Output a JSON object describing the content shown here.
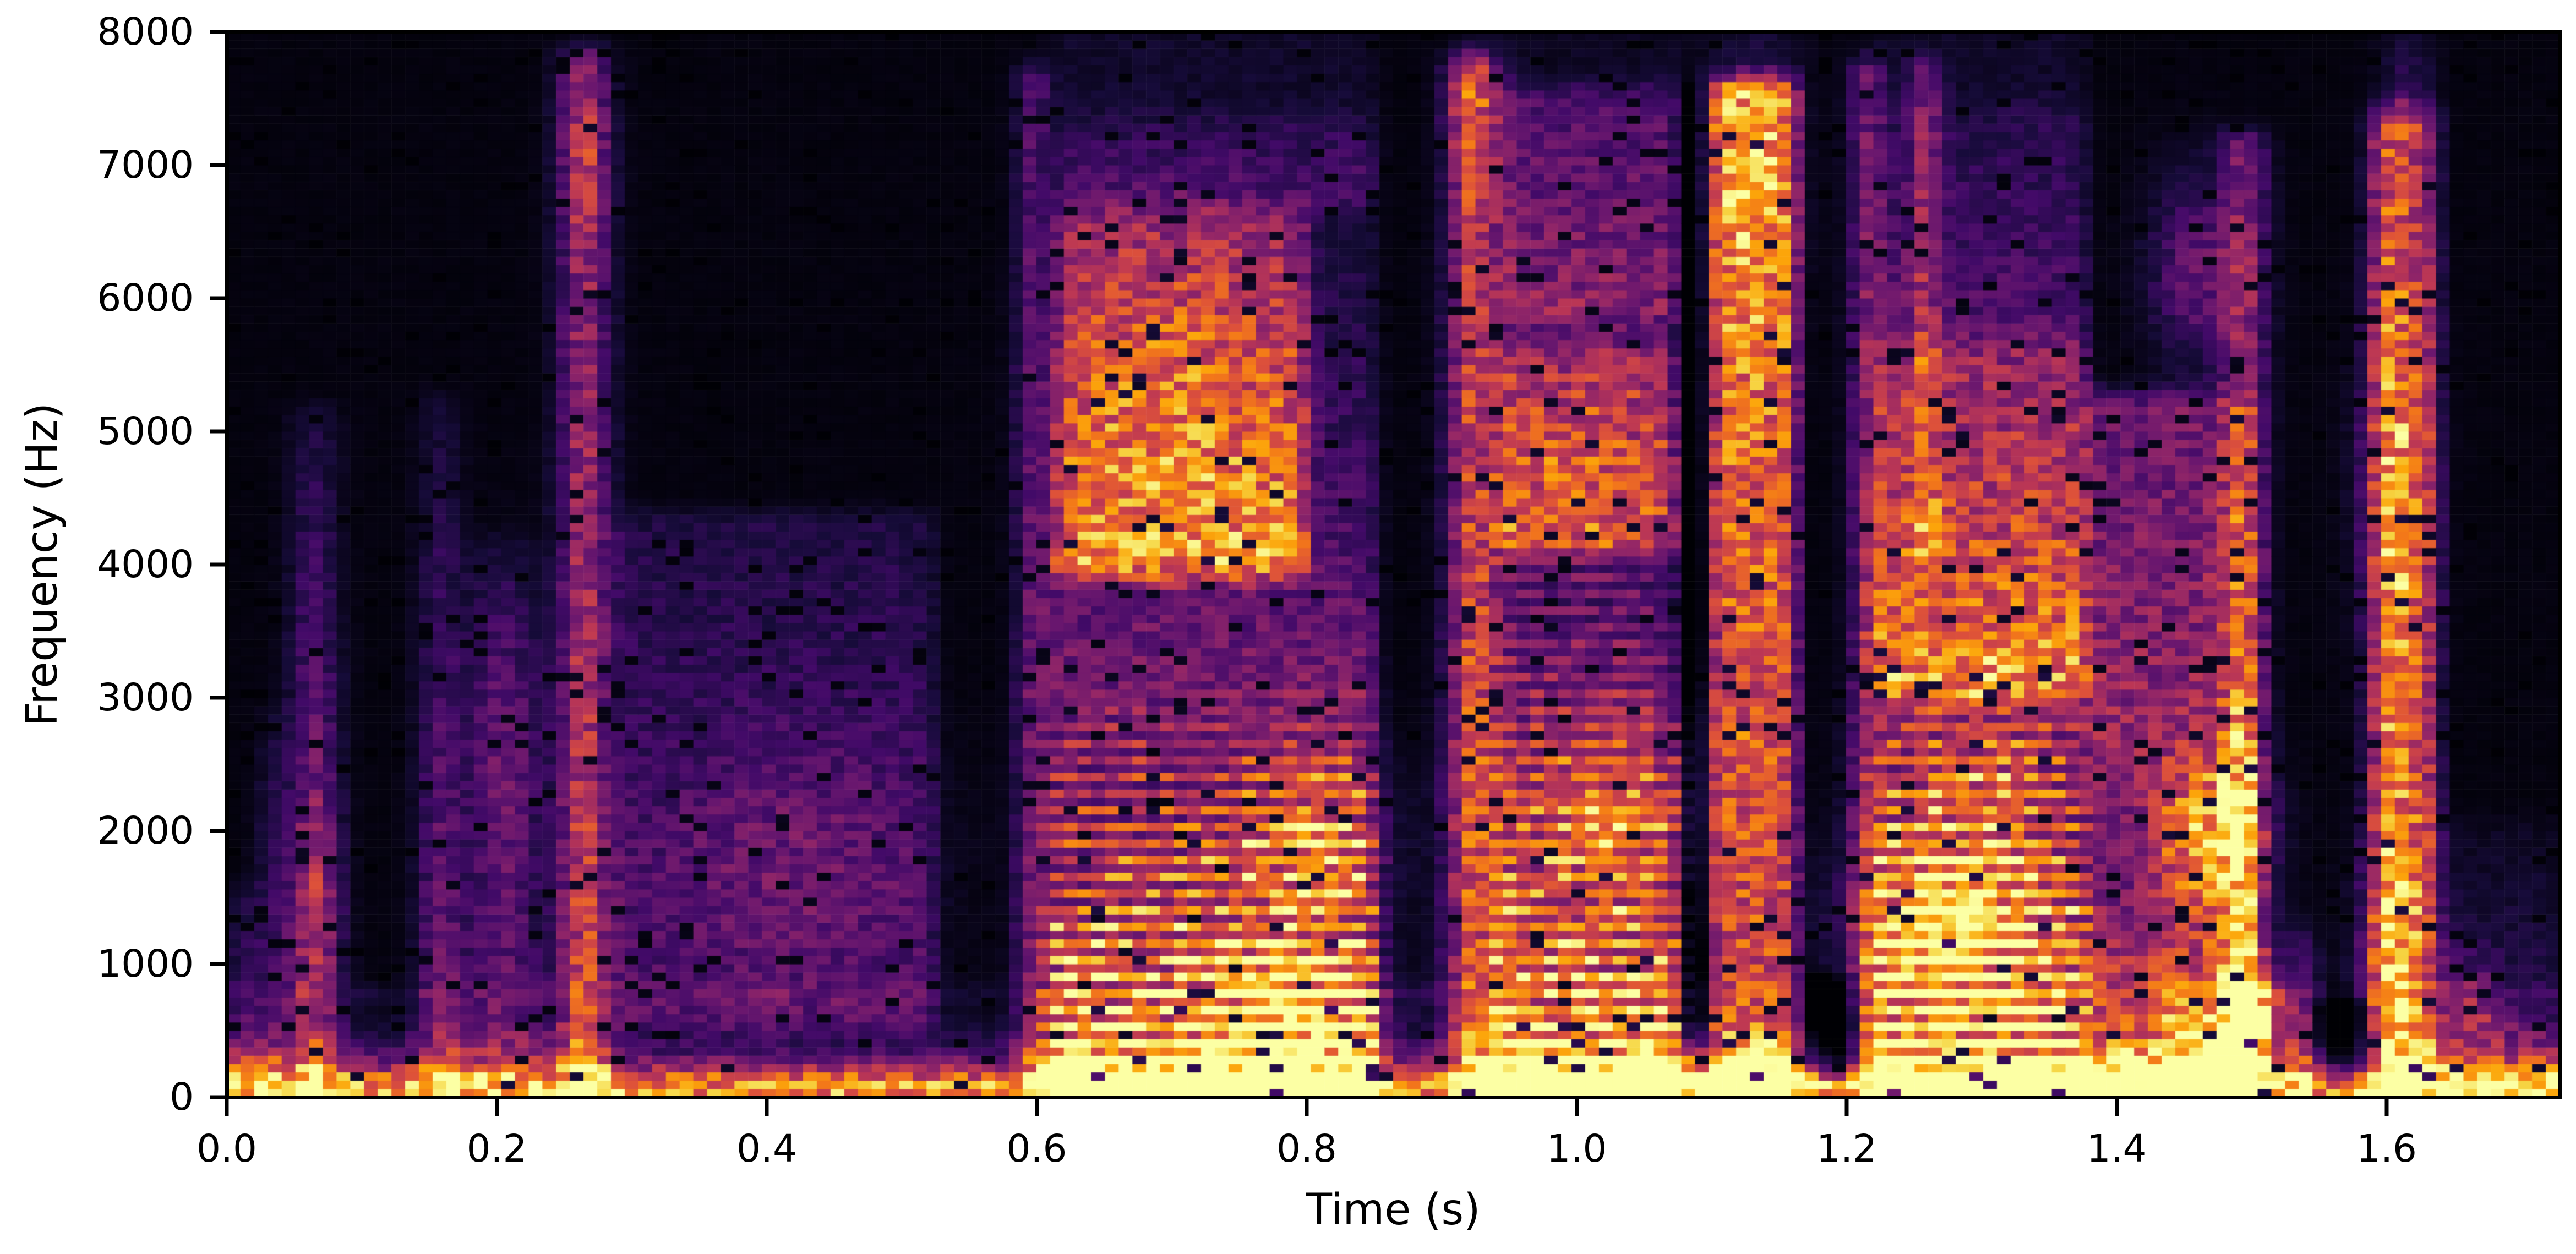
{
  "figure": {
    "xlabel": "Time (s)",
    "ylabel": "Frequency (Hz)",
    "background_color": "#ffffff",
    "spine_color": "#000000"
  },
  "chart_data": {
    "type": "heatmap",
    "subtype": "speech-spectrogram",
    "title": "",
    "xlabel": "Time (s)",
    "ylabel": "Frequency (Hz)",
    "x_range_s": [
      0,
      1.728
    ],
    "y_range_hz": [
      0,
      8000
    ],
    "x_ticks": [
      {
        "value": 0.0,
        "label": "0.0"
      },
      {
        "value": 0.2,
        "label": "0.2"
      },
      {
        "value": 0.4,
        "label": "0.4"
      },
      {
        "value": 0.6,
        "label": "0.6"
      },
      {
        "value": 0.8,
        "label": "0.8"
      },
      {
        "value": 1.0,
        "label": "1.0"
      },
      {
        "value": 1.2,
        "label": "1.2"
      },
      {
        "value": 1.4,
        "label": "1.4"
      },
      {
        "value": 1.6,
        "label": "1.6"
      }
    ],
    "y_ticks": [
      {
        "value": 0,
        "label": "0"
      },
      {
        "value": 1000,
        "label": "1000"
      },
      {
        "value": 2000,
        "label": "2000"
      },
      {
        "value": 3000,
        "label": "3000"
      },
      {
        "value": 4000,
        "label": "4000"
      },
      {
        "value": 5000,
        "label": "5000"
      },
      {
        "value": 6000,
        "label": "6000"
      },
      {
        "value": 7000,
        "label": "7000"
      },
      {
        "value": 8000,
        "label": "8000"
      }
    ],
    "grid": false,
    "legend": "none",
    "colormap": "inferno",
    "colormap_stops": [
      [
        0.0,
        0,
        0,
        4
      ],
      [
        0.1,
        22,
        11,
        57
      ],
      [
        0.2,
        66,
        10,
        104
      ],
      [
        0.3,
        106,
        23,
        110
      ],
      [
        0.4,
        147,
        38,
        103
      ],
      [
        0.5,
        188,
        55,
        84
      ],
      [
        0.6,
        221,
        81,
        58
      ],
      [
        0.7,
        243,
        120,
        25
      ],
      [
        0.8,
        252,
        165,
        10
      ],
      [
        0.9,
        246,
        215,
        70
      ],
      [
        1.0,
        252,
        255,
        164
      ]
    ],
    "render": {
      "seed": 20240917,
      "time_bins": 170,
      "freq_bins": 128,
      "noise_floor": 0.02,
      "noise_mult_min": 0.68,
      "noise_mult_span": 0.64,
      "dropout_prob": 0.05,
      "dropout_factor": 0.12,
      "edge_soft_hz": 150,
      "time_soft_s": 0.012
    },
    "segments": [
      {
        "t0": 0.0,
        "t1": 0.33,
        "label": "sparse transient clicks, mostly below 5 kHz"
      },
      {
        "t0": 0.265,
        "t1": 0.275,
        "label": "tall narrow transient reaching ~7.8 kHz"
      },
      {
        "t0": 0.285,
        "t1": 0.525,
        "label": "faint broadband murmur 0.5-4.4 kHz"
      },
      {
        "t0": 0.6,
        "t1": 0.85,
        "label": "voiced speech burst with strong low harmonics and 4-6.7 kHz energy"
      },
      {
        "t0": 0.92,
        "t1": 1.08,
        "label": "voiced speech burst, harmonics to ~5.6 kHz"
      },
      {
        "t0": 1.1,
        "t1": 1.16,
        "label": "broadband fricative column, top-weighted to ~7.6 kHz"
      },
      {
        "t0": 1.22,
        "t1": 1.5,
        "label": "strongest voiced burst, very bright below 1 kHz"
      },
      {
        "t0": 1.54,
        "t1": 1.59,
        "label": "short silent gap"
      },
      {
        "t0": 1.6,
        "t1": 1.64,
        "label": "broadband release burst to ~7.4 kHz"
      },
      {
        "t0": 1.64,
        "t1": 1.73,
        "label": "low-frequency decaying tail"
      }
    ],
    "events": [
      {
        "type": "band",
        "t0": 0.0,
        "t1": 1.728,
        "f_peak": 120,
        "decay": 170,
        "amp": 0.72
      },
      {
        "type": "hline",
        "t0": 0.0,
        "t1": 1.728,
        "fc": 780,
        "bw": 45,
        "amp": 0.055
      },
      {
        "type": "wash",
        "t0": 0.6,
        "t1": 0.852,
        "f0": 0,
        "f1": 290,
        "a0": 0.3,
        "a1": 0.18
      },
      {
        "type": "wash",
        "t0": 0.92,
        "t1": 1.162,
        "f0": 0,
        "f1": 290,
        "a0": 0.3,
        "a1": 0.18
      },
      {
        "type": "wash",
        "t0": 1.215,
        "t1": 1.505,
        "f0": 0,
        "f1": 290,
        "a0": 0.3,
        "a1": 0.18
      },
      {
        "type": "wash",
        "t0": 1.595,
        "t1": 1.64,
        "f0": 0,
        "f1": 290,
        "a0": 0.26,
        "a1": 0.15
      },
      {
        "type": "click",
        "tc": 0.012,
        "w": 0.012,
        "f0": 0,
        "f1": 1600,
        "a0": 0.22,
        "a1": 0.06
      },
      {
        "type": "click",
        "tc": 0.035,
        "w": 0.01,
        "f0": 0,
        "f1": 2900,
        "a0": 0.2,
        "a1": 0.05
      },
      {
        "type": "click",
        "tc": 0.065,
        "w": 0.013,
        "f0": 0,
        "f1": 5200,
        "a0": 0.42,
        "a1": 0.08
      },
      {
        "type": "blob",
        "tc": 0.065,
        "fc": 1500,
        "st": 0.012,
        "sf": 450,
        "amp": 0.15
      },
      {
        "type": "click",
        "tc": 0.158,
        "w": 0.012,
        "f0": 0,
        "f1": 5300,
        "a0": 0.3,
        "a1": 0.06
      },
      {
        "type": "click",
        "tc": 0.205,
        "w": 0.022,
        "f0": 0,
        "f1": 4200,
        "a0": 0.28,
        "a1": 0.06
      },
      {
        "type": "blob",
        "tc": 0.205,
        "fc": 2700,
        "st": 0.02,
        "sf": 800,
        "amp": 0.12
      },
      {
        "type": "click",
        "tc": 0.265,
        "w": 0.013,
        "f0": 0,
        "f1": 7850,
        "a0": 0.55,
        "a1": 0.3
      },
      {
        "type": "blob",
        "tc": 0.265,
        "fc": 7100,
        "st": 0.012,
        "sf": 450,
        "amp": 0.18
      },
      {
        "type": "wash",
        "t0": 0.285,
        "t1": 0.525,
        "f0": 500,
        "f1": 4400,
        "a0": 0.2,
        "a1": 0.1
      },
      {
        "type": "blob",
        "tc": 0.42,
        "fc": 1800,
        "st": 0.07,
        "sf": 600,
        "amp": 0.12
      },
      {
        "type": "click",
        "tc": 0.597,
        "w": 0.009,
        "f0": 0,
        "f1": 7750,
        "a0": 0.32,
        "a1": 0.2
      },
      {
        "type": "voiced",
        "t0": 0.608,
        "t1": 0.852,
        "amp": 0.95,
        "tilt": 2700,
        "stripe_max": 2800,
        "stripe_depth": 0.5
      },
      {
        "type": "wash",
        "t0": 0.615,
        "t1": 0.8,
        "f0": 3900,
        "f1": 6700,
        "a0": 0.52,
        "a1": 0.26
      },
      {
        "type": "wash",
        "t0": 0.615,
        "t1": 0.852,
        "f0": 6700,
        "f1": 7400,
        "a0": 0.14,
        "a1": 0.04
      },
      {
        "type": "blob",
        "tc": 0.79,
        "fc": 700,
        "st": 0.045,
        "sf": 300,
        "amp": 0.32
      },
      {
        "type": "blob",
        "tc": 0.8,
        "fc": 1900,
        "st": 0.04,
        "sf": 450,
        "amp": 0.32
      },
      {
        "type": "blob",
        "tc": 0.7,
        "fc": 5300,
        "st": 0.05,
        "sf": 800,
        "amp": 0.15
      },
      {
        "type": "click",
        "tc": 0.923,
        "w": 0.013,
        "f0": 0,
        "f1": 7800,
        "a0": 0.6,
        "a1": 0.45
      },
      {
        "type": "blob",
        "tc": 0.923,
        "fc": 7400,
        "st": 0.011,
        "sf": 350,
        "amp": 0.2
      },
      {
        "type": "voiced",
        "t0": 0.937,
        "t1": 1.078,
        "amp": 0.95,
        "tilt": 2400,
        "stripe_max": 5600,
        "stripe_depth": 0.4
      },
      {
        "type": "wash",
        "t0": 0.94,
        "t1": 1.075,
        "f0": 4100,
        "f1": 5700,
        "a0": 0.38,
        "a1": 0.25
      },
      {
        "type": "wash",
        "t0": 0.94,
        "t1": 1.078,
        "f0": 5800,
        "f1": 7600,
        "a0": 0.26,
        "a1": 0.16
      },
      {
        "type": "blob",
        "tc": 1.02,
        "fc": 2200,
        "st": 0.05,
        "sf": 600,
        "amp": 0.28
      },
      {
        "type": "blob",
        "tc": 1.0,
        "fc": 4800,
        "st": 0.04,
        "sf": 700,
        "amp": 0.14
      },
      {
        "type": "click",
        "tc": 1.086,
        "w": 0.009,
        "f0": 400,
        "f1": 7600,
        "a0": -0.18,
        "a1": -0.12
      },
      {
        "type": "wash",
        "t0": 1.098,
        "t1": 1.162,
        "f0": 0,
        "f1": 7650,
        "a0": 0.5,
        "a1": 0.68
      },
      {
        "type": "blob",
        "tc": 1.13,
        "fc": 6900,
        "st": 0.025,
        "sf": 900,
        "amp": 0.14
      },
      {
        "type": "blob",
        "tc": 1.13,
        "fc": 300,
        "st": 0.025,
        "sf": 220,
        "amp": 0.22
      },
      {
        "type": "wash",
        "t0": 1.168,
        "t1": 1.208,
        "f0": 160,
        "f1": 900,
        "a0": -0.3,
        "a1": -0.18
      },
      {
        "type": "click",
        "tc": 1.177,
        "w": 0.007,
        "f0": 0,
        "f1": 700,
        "a0": 0.2,
        "a1": 0.05
      },
      {
        "type": "click",
        "tc": 1.214,
        "w": 0.009,
        "f0": 0,
        "f1": 7800,
        "a0": 0.32,
        "a1": 0.25
      },
      {
        "type": "voiced",
        "t0": 1.218,
        "t1": 1.378,
        "amp": 1.0,
        "tilt": 2600,
        "stripe_max": 3000,
        "stripe_depth": 0.52
      },
      {
        "type": "blob",
        "tc": 1.275,
        "fc": 1300,
        "st": 0.05,
        "sf": 420,
        "amp": 0.42
      },
      {
        "type": "blob",
        "tc": 1.3,
        "fc": 2400,
        "st": 0.045,
        "sf": 550,
        "amp": 0.25
      },
      {
        "type": "wash",
        "t0": 1.22,
        "t1": 1.378,
        "f0": 3000,
        "f1": 5700,
        "a0": 0.4,
        "a1": 0.25
      },
      {
        "type": "wash",
        "t0": 1.22,
        "t1": 1.378,
        "f0": 5700,
        "f1": 7500,
        "a0": 0.12,
        "a1": 0.05
      },
      {
        "type": "click",
        "tc": 1.258,
        "w": 0.008,
        "f0": 4000,
        "f1": 7800,
        "a0": 0.2,
        "a1": 0.24
      },
      {
        "type": "wash",
        "t0": 1.378,
        "t1": 1.505,
        "f0": 0,
        "f1": 5300,
        "a0": 0.5,
        "a1": 0.26
      },
      {
        "type": "blob",
        "tc": 1.47,
        "fc": 2000,
        "st": 0.028,
        "sf": 380,
        "amp": 0.4
      },
      {
        "type": "blob",
        "tc": 1.47,
        "fc": 550,
        "st": 0.03,
        "sf": 220,
        "amp": 0.35
      },
      {
        "type": "blob",
        "tc": 1.46,
        "fc": 6200,
        "st": 0.025,
        "sf": 500,
        "amp": 0.25
      },
      {
        "type": "blob",
        "tc": 1.4,
        "fc": 1800,
        "st": 0.025,
        "sf": 450,
        "amp": -0.18
      },
      {
        "type": "click",
        "tc": 1.494,
        "w": 0.012,
        "f0": 0,
        "f1": 7250,
        "a0": 0.4,
        "a1": 0.28
      },
      {
        "type": "blob",
        "tc": 1.51,
        "fc": 600,
        "st": 0.018,
        "sf": 320,
        "amp": 0.38
      },
      {
        "type": "click",
        "tc": 1.538,
        "w": 0.009,
        "f0": 0,
        "f1": 1300,
        "a0": 0.26,
        "a1": 0.08
      },
      {
        "type": "wash",
        "t0": 1.545,
        "t1": 1.588,
        "f0": 160,
        "f1": 800,
        "a0": -0.25,
        "a1": -0.15
      },
      {
        "type": "click",
        "tc": 1.592,
        "w": 0.007,
        "f0": 0,
        "f1": 7400,
        "a0": 0.28,
        "a1": 0.2
      },
      {
        "type": "wash",
        "t0": 1.598,
        "t1": 1.636,
        "f0": 0,
        "f1": 7450,
        "a0": 0.6,
        "a1": 0.45
      },
      {
        "type": "blob",
        "tc": 1.604,
        "fc": 4600,
        "st": 0.02,
        "sf": 900,
        "amp": 0.18
      },
      {
        "type": "blob",
        "tc": 1.604,
        "fc": 1100,
        "st": 0.02,
        "sf": 600,
        "amp": 0.2
      },
      {
        "type": "blob",
        "tc": 1.615,
        "fc": 7650,
        "st": 0.014,
        "sf": 250,
        "amp": 0.12
      },
      {
        "type": "click",
        "tc": 1.602,
        "w": 0.008,
        "f0": 0,
        "f1": 7400,
        "a0": 0.22,
        "a1": 0.15
      },
      {
        "type": "wash",
        "t0": 1.64,
        "t1": 1.728,
        "f0": 0,
        "f1": 850,
        "a0": 0.32,
        "a1": 0.08
      },
      {
        "type": "blob",
        "tc": 1.66,
        "fc": 650,
        "st": 0.017,
        "sf": 240,
        "amp": 0.26
      },
      {
        "type": "wash",
        "t0": 1.64,
        "t1": 1.728,
        "f0": 850,
        "f1": 2100,
        "a0": 0.1,
        "a1": 0.03
      }
    ]
  }
}
